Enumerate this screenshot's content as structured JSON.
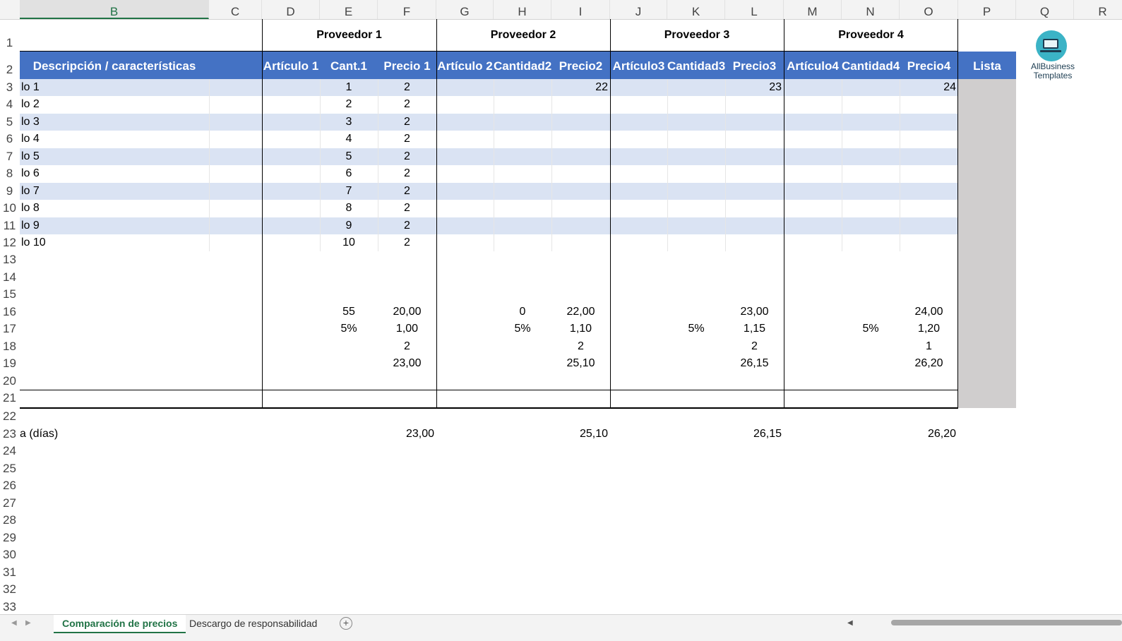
{
  "sheet": {
    "columns": [
      "B",
      "C",
      "D",
      "E",
      "F",
      "G",
      "H",
      "I",
      "J",
      "K",
      "L",
      "M",
      "N",
      "O",
      "P",
      "Q",
      "R"
    ],
    "selected_column": "B",
    "rows": [
      "1",
      "2",
      "3",
      "4",
      "5",
      "6",
      "7",
      "8",
      "9",
      "10",
      "11",
      "12",
      "13",
      "14",
      "15",
      "16",
      "17",
      "18",
      "19",
      "20",
      "21",
      "22",
      "23",
      "24",
      "25",
      "26",
      "27",
      "28",
      "29",
      "30",
      "31",
      "32",
      "33"
    ],
    "providers": [
      "Proveedor 1",
      "Proveedor 2",
      "Proveedor 3",
      "Proveedor 4"
    ],
    "header": {
      "descripcion": "Descripción / características",
      "articulo1": "Artículo 1",
      "cant1": "Cant.1",
      "precio1": "Precio 1",
      "articulo2": "Artículo 2",
      "cantidad2": "Cantidad2",
      "precio2": "Precio2",
      "articulo3": "Artículo3",
      "cantidad3": "Cantidad3",
      "precio3": "Precio3",
      "articulo4": "Artículo4",
      "cantidad4": "Cantidad4",
      "precio4": "Precio4",
      "lista": "Lista"
    },
    "items": [
      {
        "label": "lo 1",
        "cant1": "1",
        "precio1": "2",
        "precio2": "22",
        "precio3": "23",
        "precio4": "24"
      },
      {
        "label": "lo 2",
        "cant1": "2",
        "precio1": "2",
        "precio2": "",
        "precio3": "",
        "precio4": ""
      },
      {
        "label": "lo 3",
        "cant1": "3",
        "precio1": "2",
        "precio2": "",
        "precio3": "",
        "precio4": ""
      },
      {
        "label": "lo 4",
        "cant1": "4",
        "precio1": "2",
        "precio2": "",
        "precio3": "",
        "precio4": ""
      },
      {
        "label": "lo 5",
        "cant1": "5",
        "precio1": "2",
        "precio2": "",
        "precio3": "",
        "precio4": ""
      },
      {
        "label": "lo 6",
        "cant1": "6",
        "precio1": "2",
        "precio2": "",
        "precio3": "",
        "precio4": ""
      },
      {
        "label": "lo 7",
        "cant1": "7",
        "precio1": "2",
        "precio2": "",
        "precio3": "",
        "precio4": ""
      },
      {
        "label": "lo 8",
        "cant1": "8",
        "precio1": "2",
        "precio2": "",
        "precio3": "",
        "precio4": ""
      },
      {
        "label": "lo 9",
        "cant1": "9",
        "precio1": "2",
        "precio2": "",
        "precio3": "",
        "precio4": ""
      },
      {
        "label": "lo 10",
        "cant1": "10",
        "precio1": "2",
        "precio2": "",
        "precio3": "",
        "precio4": ""
      }
    ],
    "summary": {
      "r16": {
        "e": "55",
        "f": "20,00",
        "h": "0",
        "i": "22,00",
        "l": "23,00",
        "o": "24,00"
      },
      "r17": {
        "e": "5%",
        "f": "1,00",
        "h": "5%",
        "i": "1,10",
        "k": "5%",
        "l": "1,15",
        "n": "5%",
        "o": "1,20"
      },
      "r18": {
        "f": "2",
        "i": "2",
        "l": "2",
        "o": "1"
      },
      "r19": {
        "f": "23,00",
        "i": "25,10",
        "l": "26,15",
        "o": "26,20"
      }
    },
    "row23": {
      "label": "a (días)",
      "p1": "23,00",
      "p2": "25,10",
      "p3": "26,15",
      "p4": "26,20"
    }
  },
  "logo": {
    "line1": "AllBusiness",
    "line2": "Templates"
  },
  "tabs": {
    "active": "Comparación de precios",
    "other": "Descargo de responsabilidad",
    "add": "+"
  },
  "colors": {
    "header_blue": "#4472c4",
    "band_light": "#dae3f3",
    "lista_grey": "#d0cece",
    "accent_green": "#217346"
  }
}
